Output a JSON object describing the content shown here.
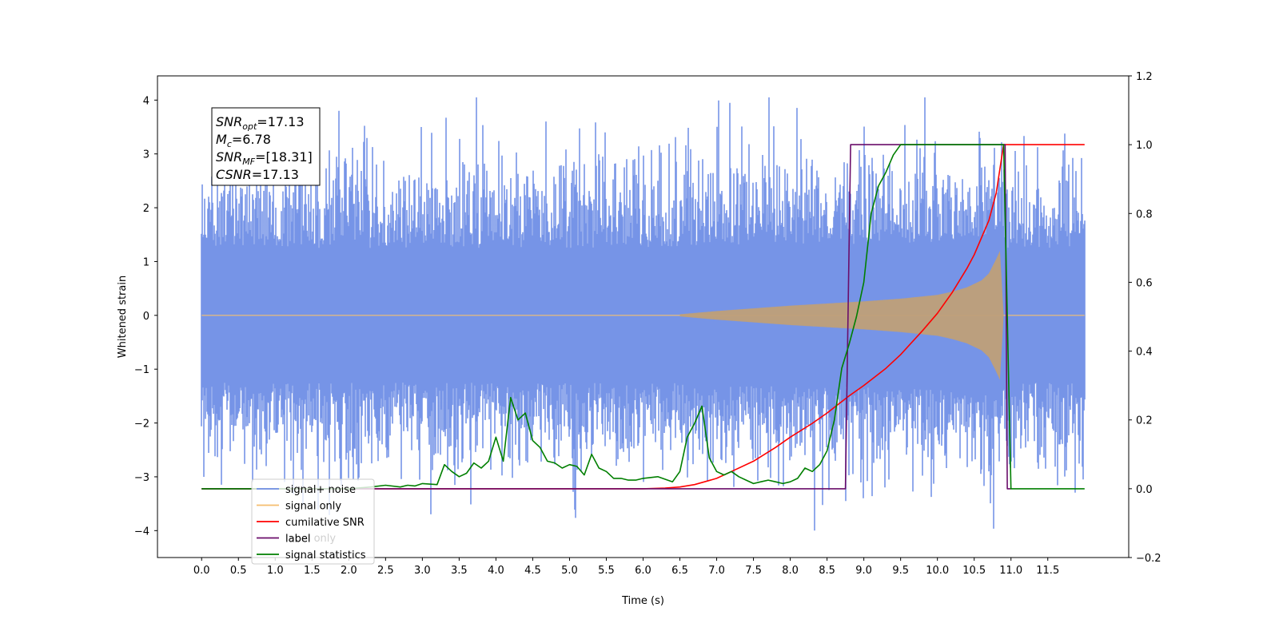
{
  "chart_data": {
    "type": "line",
    "xlabel": "Time (s)",
    "ylabel": "Whitened strain",
    "xlim": [
      -0.6,
      12.6
    ],
    "ylim_left": [
      -4.5,
      4.45
    ],
    "ylim_right": [
      -0.2,
      1.2
    ],
    "x_ticks": [
      "0.0",
      "0.5",
      "1.0",
      "1.5",
      "2.0",
      "2.5",
      "3.0",
      "3.5",
      "4.0",
      "4.5",
      "5.0",
      "5.5",
      "6.0",
      "6.5",
      "7.0",
      "7.5",
      "8.0",
      "8.5",
      "9.0",
      "9.5",
      "10.0",
      "10.5",
      "11.0",
      "11.5"
    ],
    "y_ticks_left": [
      4,
      3,
      2,
      1,
      0,
      -1,
      -2,
      -3,
      -4
    ],
    "y_ticks_left_labels": [
      "4",
      "3",
      "2",
      "1",
      "0",
      "−1",
      "−2",
      "−3",
      "−4"
    ],
    "y_ticks_right": [
      1.2,
      1.0,
      0.8,
      0.6,
      0.4,
      0.2,
      0.0,
      -0.2
    ],
    "y_ticks_right_labels": [
      "1.2",
      "1.0",
      "0.8",
      "0.6",
      "0.4",
      "0.2",
      "0.0",
      "−0.2"
    ],
    "annotation": {
      "lines": [
        {
          "base": "SNR",
          "sub": "opt",
          "value": "=17.13"
        },
        {
          "base": "M",
          "sub": "c",
          "value": "=6.78"
        },
        {
          "base": "SNR",
          "sub": "MF",
          "value": "=[18.31]"
        },
        {
          "base": "CSNR",
          "sub": "",
          "value": "=17.13"
        }
      ]
    },
    "legend": {
      "placement": "lower-left",
      "entries": [
        {
          "label": "signal+ noise",
          "color": "#6f8ee6"
        },
        {
          "label": "signal only",
          "color": "#f5be6e"
        },
        {
          "label": "cumilative SNR",
          "color": "#ff0000"
        },
        {
          "label": "label",
          "color": "#6a0d6a"
        },
        {
          "label": "signal statistics",
          "color": "#007f00"
        }
      ],
      "ghost_text": "label only"
    },
    "series": [
      {
        "name": "signal+ noise",
        "axis": "left",
        "color": "#6f8ee6",
        "x_range": [
          0.0,
          12.0
        ],
        "envelope_typical": 2.6,
        "envelope_peak": 4.05
      },
      {
        "name": "signal only",
        "axis": "left",
        "color": "#f5be6e",
        "chirp_x": [
          6.5,
          7.0,
          7.5,
          8.0,
          8.5,
          9.0,
          9.5,
          10.0,
          10.2,
          10.4,
          10.6,
          10.7,
          10.8,
          10.85,
          10.9
        ],
        "chirp_amp": [
          0.02,
          0.08,
          0.13,
          0.18,
          0.22,
          0.26,
          0.31,
          0.38,
          0.44,
          0.52,
          0.65,
          0.78,
          1.05,
          1.2,
          0.0
        ]
      },
      {
        "name": "cumilative SNR",
        "axis": "right",
        "color": "#ff0000",
        "x": [
          0.0,
          6.0,
          6.3,
          6.5,
          6.7,
          7.0,
          7.2,
          7.5,
          7.8,
          8.0,
          8.3,
          8.5,
          8.8,
          9.0,
          9.3,
          9.5,
          9.8,
          10.0,
          10.2,
          10.4,
          10.5,
          10.6,
          10.7,
          10.8,
          10.85,
          10.9,
          12.0
        ],
        "y": [
          0.0,
          0.0,
          0.002,
          0.005,
          0.012,
          0.03,
          0.05,
          0.08,
          0.12,
          0.15,
          0.19,
          0.22,
          0.27,
          0.3,
          0.35,
          0.39,
          0.46,
          0.51,
          0.57,
          0.64,
          0.68,
          0.73,
          0.78,
          0.86,
          0.93,
          1.0,
          1.0
        ]
      },
      {
        "name": "label",
        "axis": "right",
        "color": "#6a0d6a",
        "x": [
          0.0,
          8.75,
          8.82,
          10.92,
          10.95,
          11.0
        ],
        "y": [
          0.0,
          0.0,
          1.0,
          1.0,
          0.0,
          0.0
        ]
      },
      {
        "name": "signal statistics",
        "axis": "right",
        "color": "#007f00",
        "x": [
          0.0,
          2.0,
          2.3,
          2.5,
          2.7,
          2.8,
          2.9,
          3.0,
          3.2,
          3.3,
          3.4,
          3.5,
          3.6,
          3.7,
          3.8,
          3.9,
          4.0,
          4.1,
          4.2,
          4.3,
          4.4,
          4.5,
          4.6,
          4.7,
          4.8,
          4.9,
          5.0,
          5.1,
          5.2,
          5.3,
          5.4,
          5.5,
          5.6,
          5.7,
          5.8,
          5.9,
          6.0,
          6.2,
          6.4,
          6.5,
          6.6,
          6.7,
          6.8,
          6.9,
          7.0,
          7.1,
          7.2,
          7.3,
          7.4,
          7.5,
          7.6,
          7.7,
          7.8,
          7.9,
          8.0,
          8.1,
          8.2,
          8.3,
          8.4,
          8.5,
          8.6,
          8.7,
          8.8,
          8.9,
          9.0,
          9.1,
          9.2,
          9.3,
          9.4,
          9.5,
          9.6,
          10.0,
          10.5,
          10.8,
          10.9,
          11.0,
          11.5,
          12.0
        ],
        "y": [
          0.0,
          0.0,
          0.005,
          0.01,
          0.005,
          0.01,
          0.008,
          0.015,
          0.012,
          0.07,
          0.05,
          0.035,
          0.045,
          0.075,
          0.06,
          0.08,
          0.15,
          0.08,
          0.265,
          0.2,
          0.22,
          0.14,
          0.12,
          0.08,
          0.075,
          0.06,
          0.07,
          0.065,
          0.04,
          0.1,
          0.06,
          0.05,
          0.03,
          0.03,
          0.025,
          0.025,
          0.03,
          0.035,
          0.02,
          0.05,
          0.15,
          0.19,
          0.24,
          0.09,
          0.05,
          0.04,
          0.05,
          0.035,
          0.025,
          0.015,
          0.02,
          0.025,
          0.02,
          0.015,
          0.02,
          0.03,
          0.06,
          0.05,
          0.07,
          0.11,
          0.2,
          0.35,
          0.42,
          0.5,
          0.6,
          0.8,
          0.88,
          0.92,
          0.97,
          1.0,
          1.0,
          1.0,
          1.0,
          1.0,
          1.0,
          0.0,
          0.0,
          0.0
        ]
      }
    ]
  }
}
